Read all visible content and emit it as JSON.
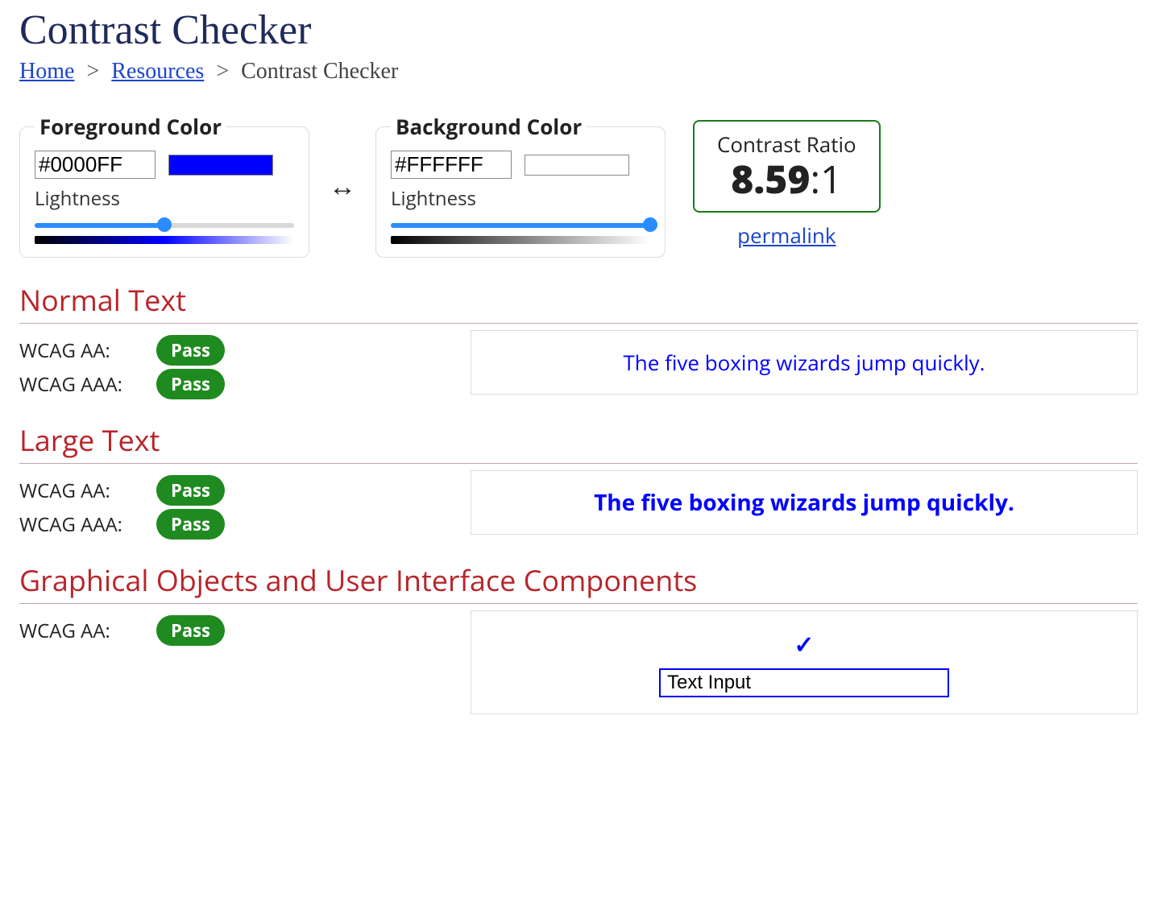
{
  "page": {
    "title": "Contrast Checker",
    "breadcrumb": {
      "home": "Home",
      "resources": "Resources",
      "current": "Contrast Checker",
      "separator": ">"
    }
  },
  "colors": {
    "heading_color": "#1f2a5b",
    "link_color": "#1a45c9",
    "section_title_color": "#b8252a",
    "pass_badge_bg": "#1f8a1f",
    "pass_badge_text": "#ffffff",
    "fail_badge_bg": "#b8252a",
    "fail_badge_text": "#ffffff",
    "ratio_border": "#1a7a1a",
    "slider_fill": "#2a8cff",
    "box_border": "#dcdcdc"
  },
  "foreground": {
    "legend": "Foreground Color",
    "hex": "#0000FF",
    "swatch_color": "#0000FF",
    "lightness_label": "Lightness",
    "lightness_percent": 50,
    "gradient_css": "linear-gradient(to right, #000000, #0000ff 50%, #ffffff)"
  },
  "background": {
    "legend": "Background Color",
    "hex": "#FFFFFF",
    "swatch_color": "#FFFFFF",
    "lightness_label": "Lightness",
    "lightness_percent": 100,
    "gradient_css": "linear-gradient(to right, #000000, #ffffff)"
  },
  "swap_symbol": "↔",
  "ratio": {
    "label": "Contrast Ratio",
    "value": "8.59",
    "suffix": ":1",
    "permalink_label": "permalink"
  },
  "sections": {
    "normal": {
      "title": "Normal Text",
      "aa_label": "WCAG AA:",
      "aa_status": "Pass",
      "aaa_label": "WCAG AAA:",
      "aaa_status": "Pass",
      "sample_text": "The five boxing wizards jump quickly."
    },
    "large": {
      "title": "Large Text",
      "aa_label": "WCAG AA:",
      "aa_status": "Pass",
      "aaa_label": "WCAG AAA:",
      "aaa_status": "Pass",
      "sample_text": "The five boxing wizards jump quickly."
    },
    "ui": {
      "title": "Graphical Objects and User Interface Components",
      "aa_label": "WCAG AA:",
      "aa_status": "Pass",
      "check_symbol": "✓",
      "input_placeholder": "Text Input"
    }
  }
}
